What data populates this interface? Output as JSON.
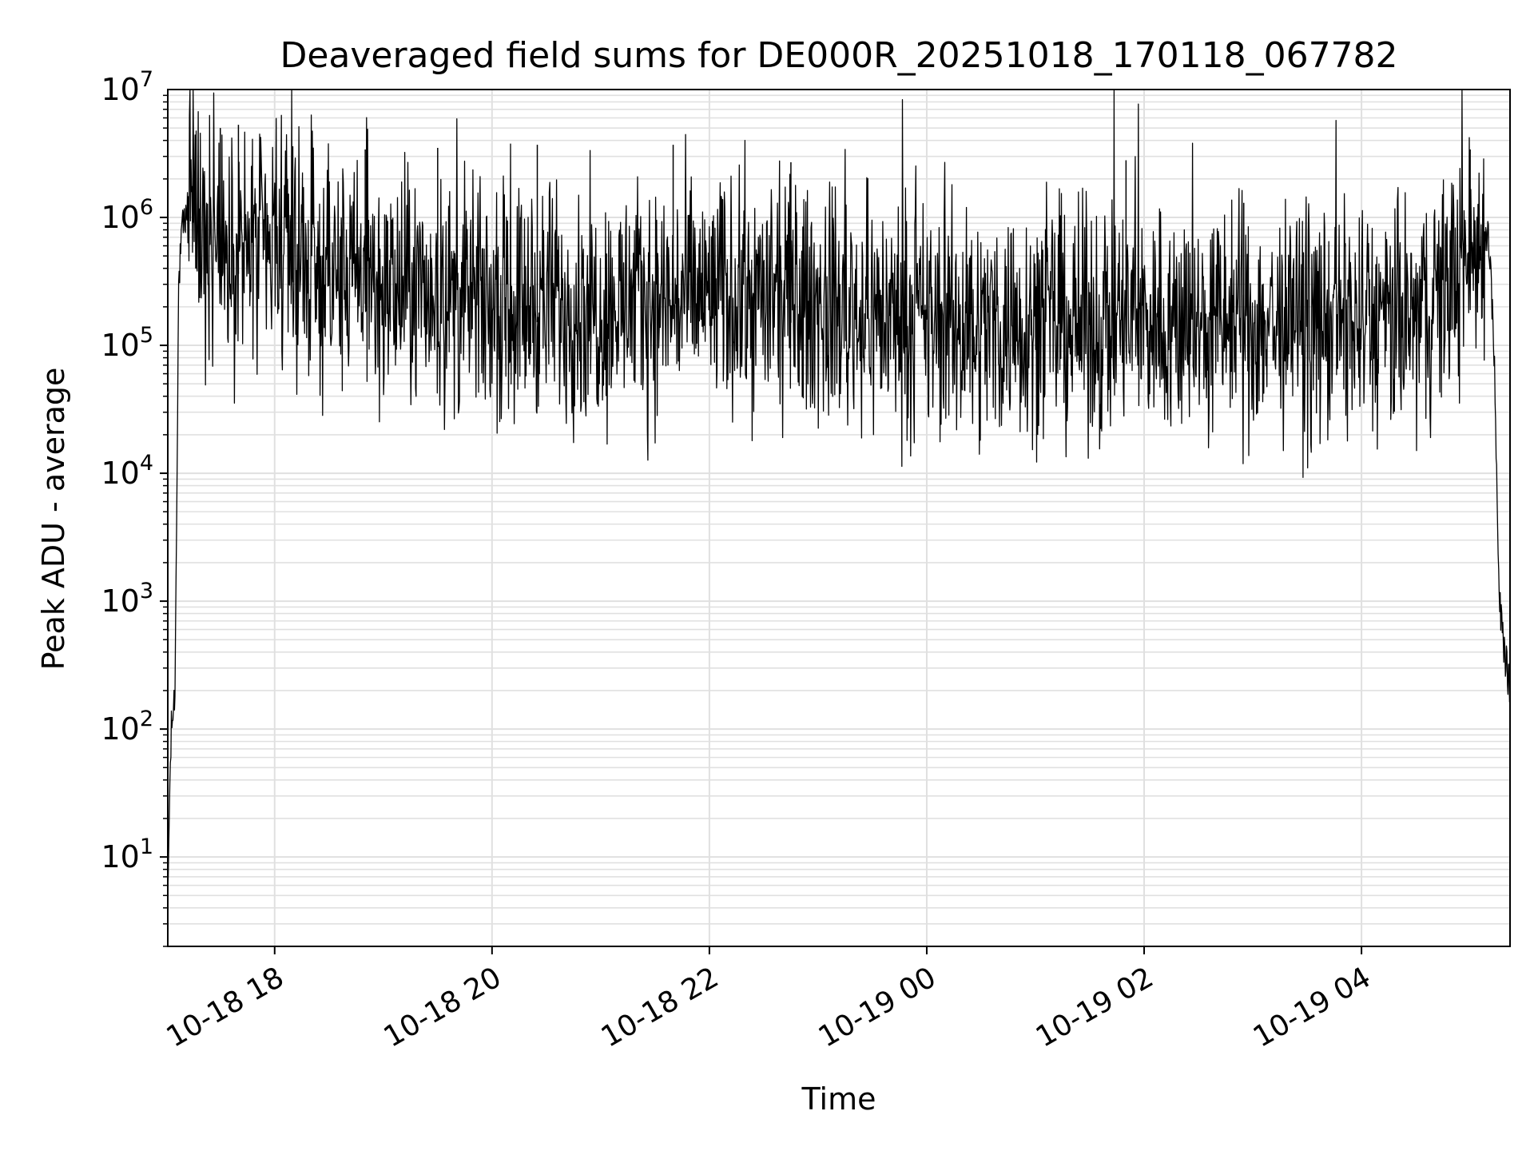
{
  "chart_data": {
    "type": "line",
    "title": "Deaveraged field sums for DE000R_20251018_170118_067782",
    "xlabel": "Time",
    "ylabel": "Peak ADU - average",
    "y_scale": "log",
    "ylim": [
      2,
      10000000
    ],
    "xlim": [
      "2025-10-18 17:01",
      "2025-10-19 05:22"
    ],
    "grid": "major and minor",
    "line_color": "#000000",
    "grid_color": "#e0e0e0",
    "x_ticks": [
      {
        "time": "2025-10-18 18:00",
        "label": "10-18 18"
      },
      {
        "time": "2025-10-18 20:00",
        "label": "10-18 20"
      },
      {
        "time": "2025-10-18 22:00",
        "label": "10-18 22"
      },
      {
        "time": "2025-10-19 00:00",
        "label": "10-19 00"
      },
      {
        "time": "2025-10-19 02:00",
        "label": "10-19 02"
      },
      {
        "time": "2025-10-19 04:00",
        "label": "10-19 04"
      }
    ],
    "y_ticks": [
      {
        "value": 10,
        "base": "10",
        "exp": "1"
      },
      {
        "value": 100,
        "base": "10",
        "exp": "2"
      },
      {
        "value": 1000,
        "base": "10",
        "exp": "3"
      },
      {
        "value": 10000,
        "base": "10",
        "exp": "4"
      },
      {
        "value": 100000,
        "base": "10",
        "exp": "5"
      },
      {
        "value": 1000000,
        "base": "10",
        "exp": "6"
      },
      {
        "value": 10000000,
        "base": "10",
        "exp": "7"
      }
    ],
    "series": [
      {
        "x": [
          "2025-10-18 17:01",
          "2025-10-18 17:02",
          "2025-10-18 17:03",
          "2025-10-18 17:05",
          "2025-10-18 17:07",
          "2025-10-18 17:09",
          "2025-10-18 17:12",
          "2025-10-18 17:15",
          "2025-10-18 17:20",
          "2025-10-18 17:30",
          "2025-10-18 17:45",
          "2025-10-18 18:00",
          "2025-10-18 18:30",
          "2025-10-18 19:00",
          "2025-10-18 19:30",
          "2025-10-18 20:00",
          "2025-10-18 20:30",
          "2025-10-18 21:00",
          "2025-10-18 21:30",
          "2025-10-18 22:00",
          "2025-10-18 22:30",
          "2025-10-18 23:00",
          "2025-10-18 23:30",
          "2025-10-19 00:00",
          "2025-10-19 00:30",
          "2025-10-19 01:00",
          "2025-10-19 01:30",
          "2025-10-19 02:00",
          "2025-10-19 02:30",
          "2025-10-19 03:00",
          "2025-10-19 03:30",
          "2025-10-19 04:00",
          "2025-10-19 04:30",
          "2025-10-19 04:50",
          "2025-10-19 05:05",
          "2025-10-19 05:10",
          "2025-10-19 05:13",
          "2025-10-19 05:16",
          "2025-10-19 05:19",
          "2025-10-19 05:22"
        ],
        "y": [
          4,
          30,
          100,
          200,
          300000,
          800000,
          1200000,
          1300000,
          800000,
          550000,
          500000,
          500000,
          350000,
          280000,
          250000,
          200000,
          220000,
          200000,
          220000,
          250000,
          230000,
          200000,
          180000,
          150000,
          140000,
          160000,
          140000,
          160000,
          140000,
          150000,
          140000,
          150000,
          150000,
          350000,
          600000,
          800000,
          120000,
          1000,
          400,
          200
        ]
      }
    ],
    "annotations": [
      {
        "time": "2025-10-18 17:15",
        "value": 5200000
      },
      {
        "time": "2025-10-18 17:30",
        "value": 5000000
      },
      {
        "time": "2025-10-18 17:40",
        "value": 5300000
      },
      {
        "time": "2025-10-18 18:10",
        "value": 3600000
      },
      {
        "time": "2025-10-18 18:50",
        "value": 3400000
      },
      {
        "time": "2025-10-18 19:30",
        "value": 3500000
      },
      {
        "time": "2025-10-18 20:25",
        "value": 3700000
      },
      {
        "time": "2025-10-18 21:40",
        "value": 3700000
      },
      {
        "time": "2025-10-18 22:45",
        "value": 2700000
      },
      {
        "time": "2025-10-19 01:50",
        "value": 2800000
      },
      {
        "time": "2025-10-19 02:55",
        "value": 1300000
      },
      {
        "time": "2025-10-19 05:00",
        "value": 3400000
      }
    ]
  }
}
